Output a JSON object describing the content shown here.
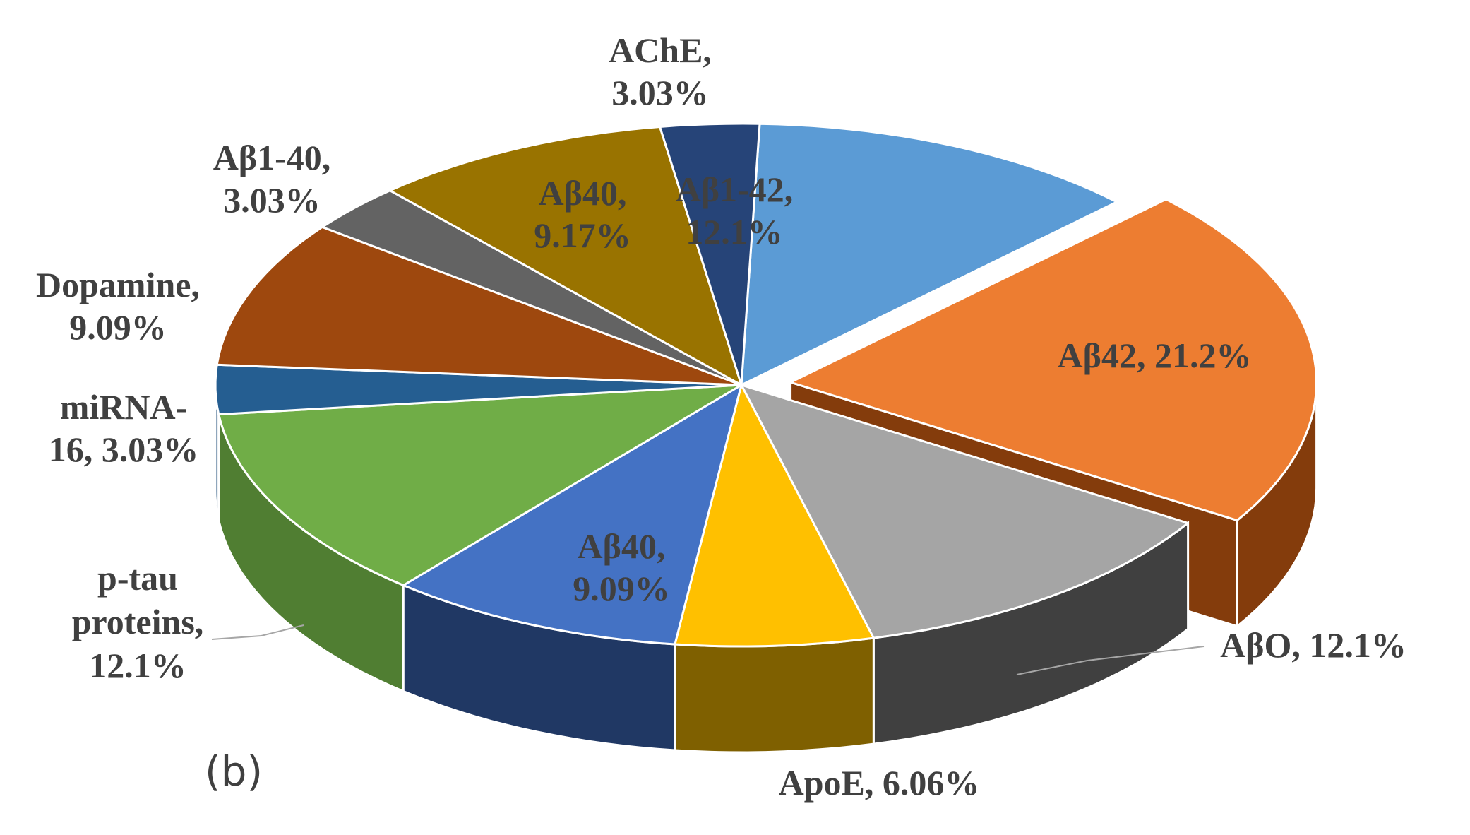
{
  "panel_label": "(b)",
  "chart_data": {
    "type": "pie",
    "style": "3d-exploded",
    "title": "",
    "slices": [
      {
        "name": "Aβ1-42",
        "value": 12.1,
        "label_lines": [
          "Aβ1-42,",
          "12.1%"
        ],
        "color": "#5B9BD5",
        "side_color": "#2E5C8A"
      },
      {
        "name": "Aβ42",
        "value": 21.2,
        "label_lines": [
          "Aβ42, 21.2%"
        ],
        "color": "#ED7D31",
        "side_color": "#843C0C",
        "exploded": true
      },
      {
        "name": "AβO",
        "value": 12.1,
        "label_lines": [
          "AβO, 12.1%"
        ],
        "color": "#A5A5A5",
        "side_color": "#404040"
      },
      {
        "name": "ApoE",
        "value": 6.06,
        "label_lines": [
          "ApoE, 6.06%"
        ],
        "color": "#FFC000",
        "side_color": "#7F6000"
      },
      {
        "name": "Aβ40",
        "value": 9.09,
        "label_lines": [
          "Aβ40,",
          "9.09%"
        ],
        "color": "#4472C4",
        "side_color": "#203864"
      },
      {
        "name": "p-tau proteins",
        "value": 12.1,
        "label_lines": [
          "p-tau",
          "proteins,",
          "12.1%"
        ],
        "color": "#70AD47",
        "side_color": "#507E32"
      },
      {
        "name": "miRNA-16",
        "value": 3.03,
        "label_lines": [
          "miRNA-",
          "16, 3.03%"
        ],
        "color": "#255E91",
        "side_color": "#1F4E79"
      },
      {
        "name": "Dopamine",
        "value": 9.09,
        "label_lines": [
          "Dopamine,",
          "9.09%"
        ],
        "color": "#9E480E",
        "side_color": "#632B08"
      },
      {
        "name": "Aβ1-40",
        "value": 3.03,
        "label_lines": [
          "Aβ1-40,",
          "3.03%"
        ],
        "color": "#636363",
        "side_color": "#3A3A3A"
      },
      {
        "name": "Aβ40",
        "value": 9.17,
        "label_lines": [
          "Aβ40,",
          "9.17%"
        ],
        "color": "#997300",
        "side_color": "#614900"
      },
      {
        "name": "AChE",
        "value": 3.03,
        "label_lines": [
          "AChE,",
          "3.03%"
        ],
        "color": "#264478",
        "side_color": "#17294A"
      }
    ]
  }
}
